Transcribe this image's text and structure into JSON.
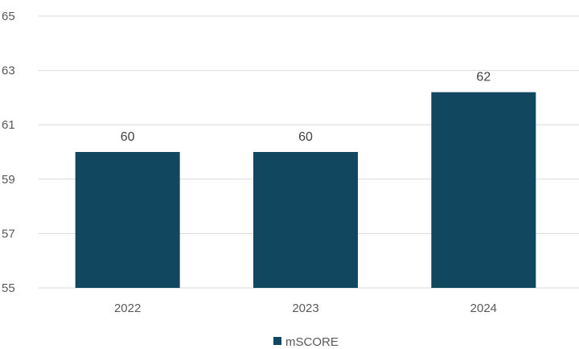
{
  "chart_data": {
    "type": "bar",
    "categories": [
      "2022",
      "2023",
      "2024"
    ],
    "series": [
      {
        "name": "mSCORE",
        "values": [
          60,
          60,
          62.2
        ],
        "labels": [
          "60",
          "60",
          "62"
        ]
      }
    ],
    "ylim": [
      55,
      65
    ],
    "yticks": [
      55,
      57,
      59,
      61,
      63,
      65
    ],
    "grid": true,
    "legend": "bottom",
    "colors": {
      "bar": "#114860",
      "grid": "#d9d9d9",
      "text": "#595959"
    }
  }
}
